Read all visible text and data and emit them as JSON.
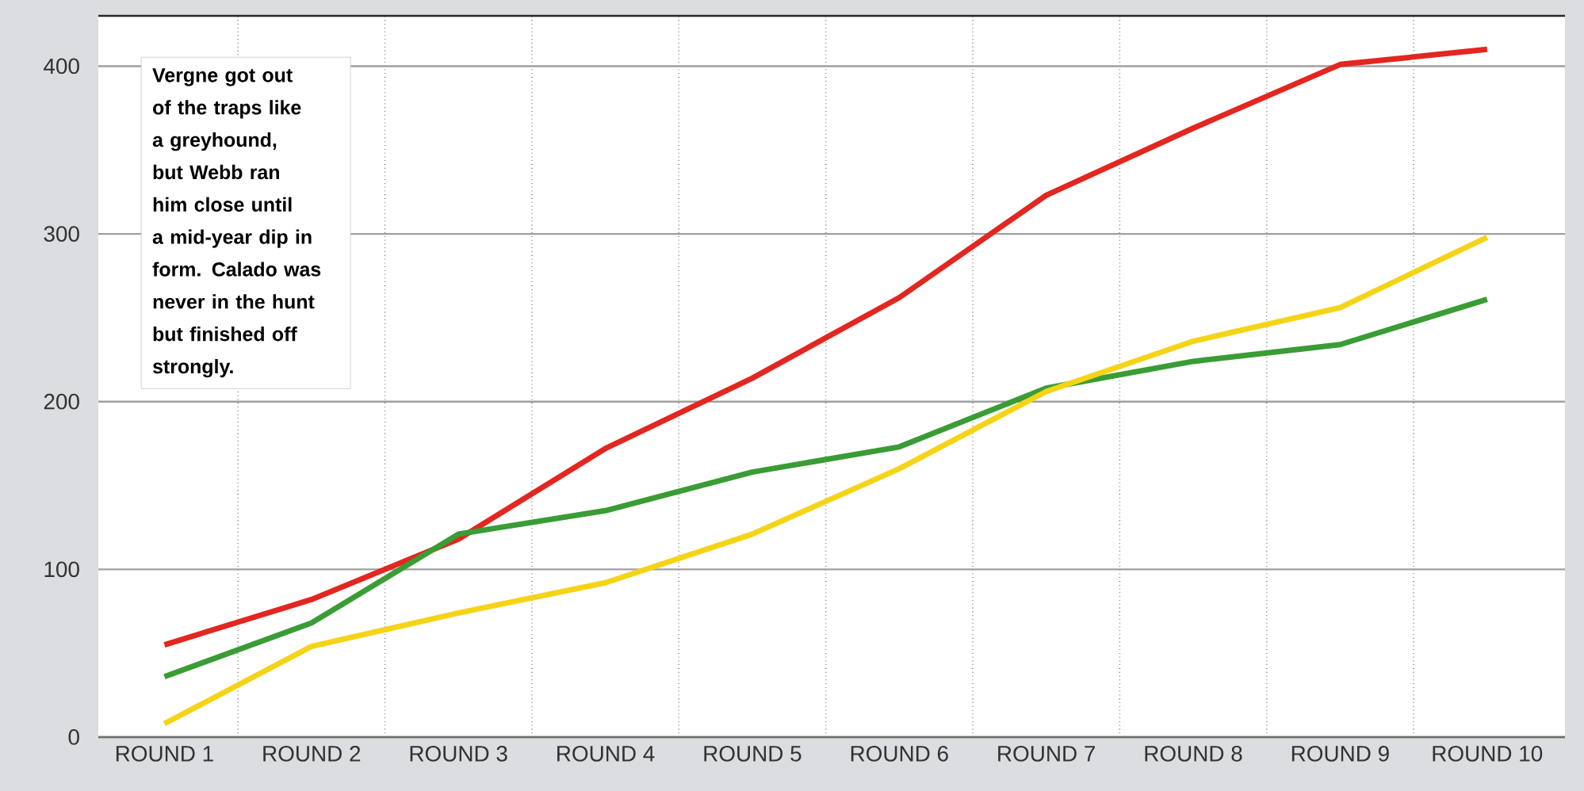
{
  "chart_data": {
    "type": "line",
    "categories": [
      "ROUND 1",
      "ROUND 2",
      "ROUND 3",
      "ROUND 4",
      "ROUND 5",
      "ROUND 6",
      "ROUND 7",
      "ROUND 8",
      "ROUND 9",
      "ROUND 10"
    ],
    "series": [
      {
        "color": "#e3261f",
        "values": [
          55,
          82,
          118,
          172,
          214,
          262,
          323,
          363,
          401,
          410
        ]
      },
      {
        "color": "#3a9c35",
        "values": [
          36,
          68,
          121,
          135,
          158,
          173,
          208,
          224,
          234,
          261
        ]
      },
      {
        "color": "#f5d417",
        "values": [
          8,
          54,
          74,
          92,
          121,
          160,
          206,
          236,
          256,
          298
        ]
      }
    ],
    "ylim": [
      0,
      430
    ],
    "yticks": [
      0,
      100,
      200,
      300,
      400
    ],
    "grid": true,
    "line_style": "solid",
    "marker": "none",
    "annotations": [
      "Vergne got out of the traps like a greyhound, but Webb ran him close until a mid-year dip in form. Calado was never in the hunt but finished off strongly."
    ]
  }
}
